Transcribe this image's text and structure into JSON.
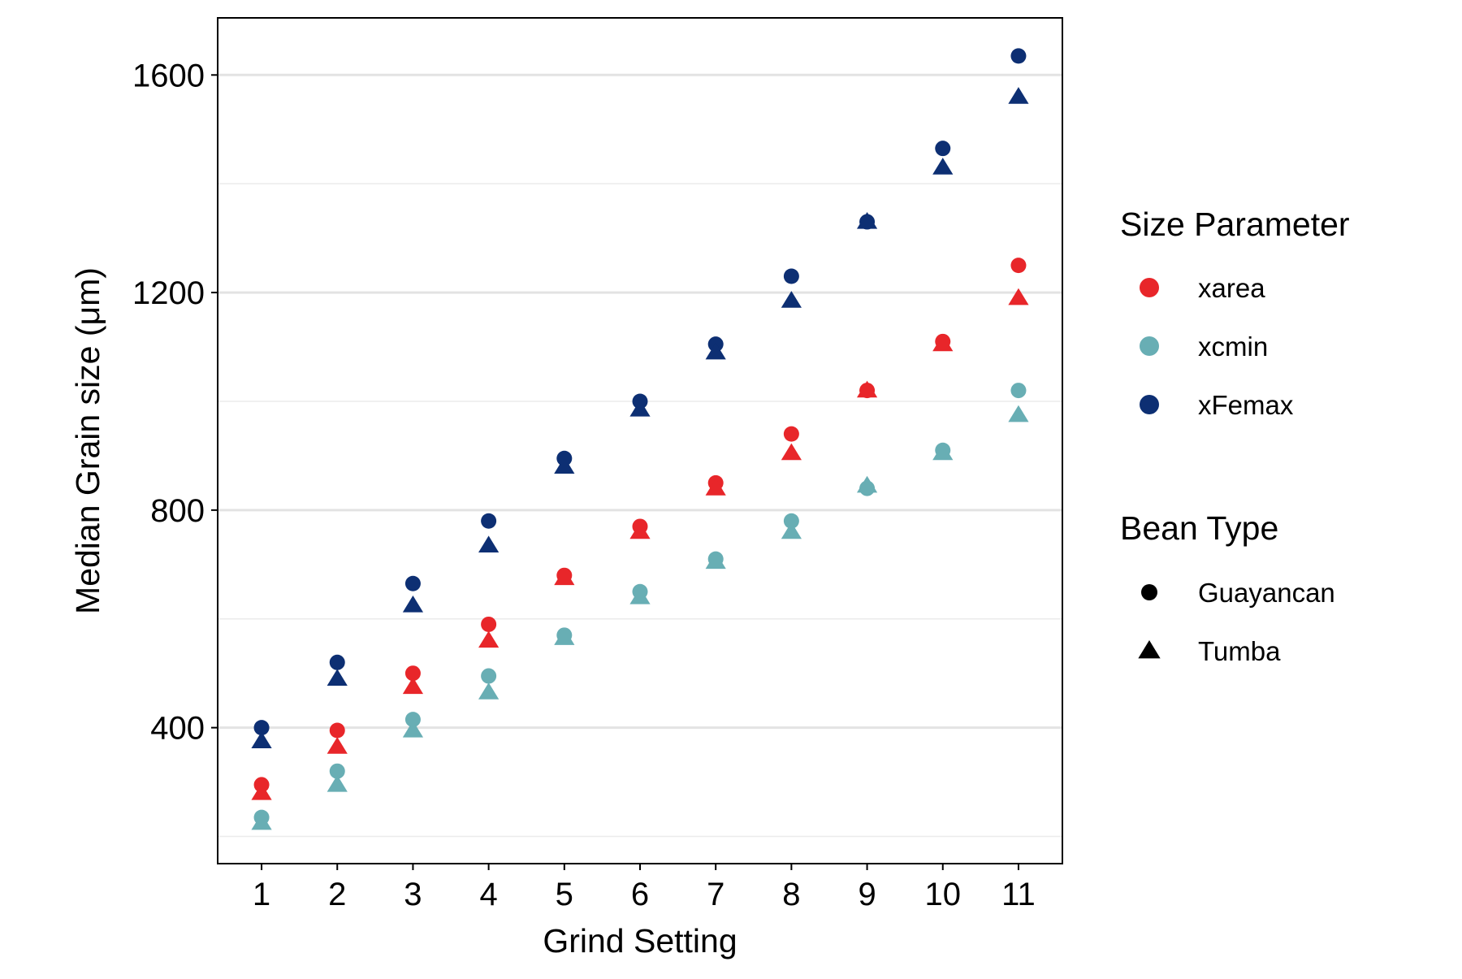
{
  "chart_data": {
    "type": "scatter",
    "title": "",
    "xlabel": "Grind Setting",
    "ylabel": "Median Grain size (μm)",
    "x": [
      1,
      2,
      3,
      4,
      5,
      6,
      7,
      8,
      9,
      10,
      11
    ],
    "x_ticks": [
      "1",
      "2",
      "3",
      "4",
      "5",
      "6",
      "7",
      "8",
      "9",
      "10",
      "11"
    ],
    "y_ticks": [
      400,
      800,
      1200,
      1600
    ],
    "ylim": [
      150,
      1705
    ],
    "xlim": [
      0.42,
      11.58
    ],
    "grid": true,
    "legend_position": "right",
    "series": [
      {
        "name": "xarea",
        "shape": "circle",
        "bean": "Guayancan",
        "color": "#E8262A",
        "values": [
          295,
          395,
          500,
          590,
          680,
          770,
          850,
          940,
          1020,
          1110,
          1250
        ]
      },
      {
        "name": "xarea",
        "shape": "triangle",
        "bean": "Tumba",
        "color": "#E8262A",
        "values": [
          280,
          365,
          475,
          560,
          675,
          760,
          840,
          905,
          1020,
          1105,
          1190
        ]
      },
      {
        "name": "xcmin",
        "shape": "circle",
        "bean": "Guayancan",
        "color": "#68AEB4",
        "values": [
          235,
          320,
          415,
          495,
          570,
          650,
          710,
          780,
          840,
          910,
          1020
        ]
      },
      {
        "name": "xcmin",
        "shape": "triangle",
        "bean": "Tumba",
        "color": "#68AEB4",
        "values": [
          225,
          295,
          395,
          465,
          565,
          640,
          705,
          760,
          845,
          905,
          975
        ]
      },
      {
        "name": "xFemax",
        "shape": "circle",
        "bean": "Guayancan",
        "color": "#0D2F73",
        "values": [
          400,
          520,
          665,
          780,
          895,
          1000,
          1105,
          1230,
          1330,
          1465,
          1635
        ]
      },
      {
        "name": "xFemax",
        "shape": "triangle",
        "bean": "Tumba",
        "color": "#0D2F73",
        "values": [
          375,
          490,
          625,
          735,
          880,
          985,
          1090,
          1185,
          1330,
          1430,
          1560
        ]
      }
    ],
    "legend": {
      "color_title": "Size Parameter",
      "color_items": [
        {
          "label": "xarea",
          "color": "#E8262A"
        },
        {
          "label": "xcmin",
          "color": "#68AEB4"
        },
        {
          "label": "xFemax",
          "color": "#0D2F73"
        }
      ],
      "shape_title": "Bean Type",
      "shape_items": [
        {
          "label": "Guayancan",
          "shape": "circle"
        },
        {
          "label": "Tumba",
          "shape": "triangle"
        }
      ]
    }
  }
}
